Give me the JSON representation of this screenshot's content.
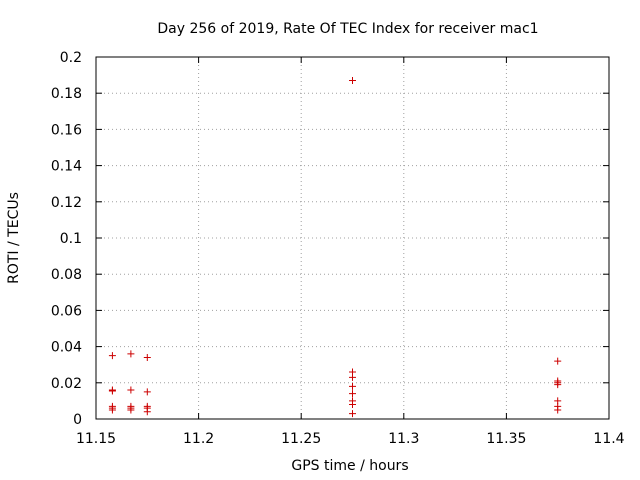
{
  "chart_data": {
    "type": "scatter",
    "title": "Day 256 of 2019, Rate Of TEC Index for receiver mac1",
    "xlabel": "GPS time / hours",
    "ylabel": "ROTI / TECUs",
    "xlim": [
      11.15,
      11.4
    ],
    "ylim": [
      0,
      0.2
    ],
    "xticks": [
      11.15,
      11.2,
      11.25,
      11.3,
      11.35,
      11.4
    ],
    "xtick_labels": [
      "11.15",
      "11.2",
      "11.25",
      "11.3",
      "11.35",
      "11.4"
    ],
    "yticks": [
      0,
      0.02,
      0.04,
      0.06,
      0.08,
      0.1,
      0.12,
      0.14,
      0.16,
      0.18,
      0.2
    ],
    "ytick_labels": [
      "0",
      "0.02",
      "0.04",
      "0.06",
      "0.08",
      "0.1",
      "0.12",
      "0.14",
      "0.16",
      "0.18",
      "0.2"
    ],
    "grid": true,
    "marker": "+",
    "series": [
      {
        "name": "ROTI",
        "color": "#cc0000",
        "points": [
          {
            "x": 11.158,
            "y": 0.035
          },
          {
            "x": 11.158,
            "y": 0.016
          },
          {
            "x": 11.158,
            "y": 0.0155
          },
          {
            "x": 11.158,
            "y": 0.007
          },
          {
            "x": 11.158,
            "y": 0.006
          },
          {
            "x": 11.158,
            "y": 0.005
          },
          {
            "x": 11.167,
            "y": 0.036
          },
          {
            "x": 11.167,
            "y": 0.016
          },
          {
            "x": 11.167,
            "y": 0.007
          },
          {
            "x": 11.167,
            "y": 0.006
          },
          {
            "x": 11.167,
            "y": 0.005
          },
          {
            "x": 11.175,
            "y": 0.034
          },
          {
            "x": 11.175,
            "y": 0.015
          },
          {
            "x": 11.175,
            "y": 0.007
          },
          {
            "x": 11.175,
            "y": 0.006
          },
          {
            "x": 11.175,
            "y": 0.004
          },
          {
            "x": 11.275,
            "y": 0.187
          },
          {
            "x": 11.275,
            "y": 0.026
          },
          {
            "x": 11.275,
            "y": 0.023
          },
          {
            "x": 11.275,
            "y": 0.018
          },
          {
            "x": 11.275,
            "y": 0.014
          },
          {
            "x": 11.275,
            "y": 0.01
          },
          {
            "x": 11.275,
            "y": 0.008
          },
          {
            "x": 11.275,
            "y": 0.003
          },
          {
            "x": 11.375,
            "y": 0.032
          },
          {
            "x": 11.375,
            "y": 0.021
          },
          {
            "x": 11.375,
            "y": 0.02
          },
          {
            "x": 11.375,
            "y": 0.019
          },
          {
            "x": 11.375,
            "y": 0.01
          },
          {
            "x": 11.375,
            "y": 0.007
          },
          {
            "x": 11.375,
            "y": 0.005
          }
        ]
      }
    ]
  }
}
